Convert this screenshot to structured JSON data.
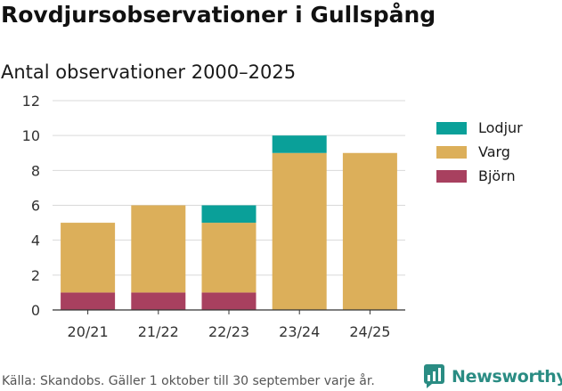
{
  "header": {
    "title": "Rovdjursobservationer i Gullspång",
    "subtitle": "Antal observationer 2000–2025"
  },
  "footer": {
    "source": "Källa: Skandobs. Gäller 1 oktober till 30 september varje år.",
    "brand": "Newsworthy"
  },
  "colors": {
    "lodjur": "#0aa099",
    "varg": "#dcaf5a",
    "bjorn": "#a8405f",
    "brand": "#2a8c83"
  },
  "chart_data": {
    "type": "bar",
    "stacked": true,
    "categories": [
      "20/21",
      "21/22",
      "22/23",
      "23/24",
      "24/25"
    ],
    "series": [
      {
        "name": "Björn",
        "values": [
          1,
          1,
          1,
          0,
          0
        ]
      },
      {
        "name": "Varg",
        "values": [
          4,
          5,
          4,
          9,
          9
        ]
      },
      {
        "name": "Lodjur",
        "values": [
          0,
          0,
          1,
          1,
          0
        ]
      }
    ],
    "title": "Rovdjursobservationer i Gullspång",
    "subtitle": "Antal observationer 2000–2025",
    "ylim": [
      0,
      12
    ],
    "yticks": [
      "0",
      "2",
      "4",
      "6",
      "8",
      "10",
      "12"
    ],
    "grid": true,
    "legend_position": "right"
  },
  "legend": {
    "items": [
      {
        "label": "Lodjur",
        "color_key": "lodjur"
      },
      {
        "label": "Varg",
        "color_key": "varg"
      },
      {
        "label": "Björn",
        "color_key": "bjorn"
      }
    ]
  }
}
